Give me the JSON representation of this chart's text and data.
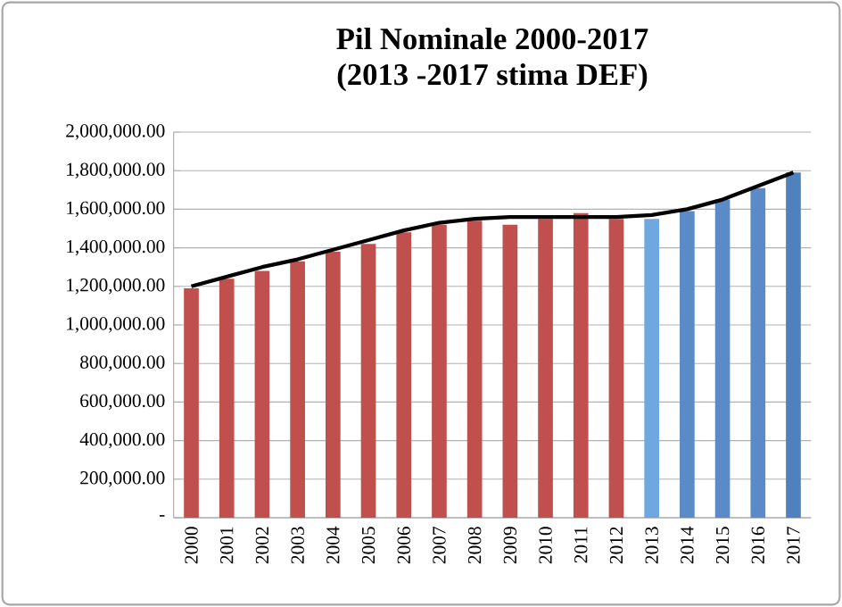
{
  "chart_data": {
    "type": "bar",
    "title": "Pil Nominale 2000-2017",
    "subtitle": "(2013 -2017 stima DEF)",
    "categories": [
      "2000",
      "2001",
      "2002",
      "2003",
      "2004",
      "2005",
      "2006",
      "2007",
      "2008",
      "2009",
      "2010",
      "2011",
      "2012",
      "2013",
      "2014",
      "2015",
      "2016",
      "2017"
    ],
    "series": [
      {
        "colors": [
          "#c0504d",
          "#c0504d",
          "#c0504d",
          "#c0504d",
          "#c0504d",
          "#c0504d",
          "#c0504d",
          "#c0504d",
          "#c0504d",
          "#c0504d",
          "#c0504d",
          "#c0504d",
          "#c0504d",
          "#6fa8e0",
          "#5b8bc6",
          "#5b8bc6",
          "#5b8bc6",
          "#4f81bd"
        ],
        "values": [
          1190000,
          1240000,
          1280000,
          1330000,
          1380000,
          1420000,
          1480000,
          1520000,
          1540000,
          1520000,
          1550000,
          1580000,
          1550000,
          1550000,
          1590000,
          1650000,
          1710000,
          1790000
        ]
      },
      {
        "type": "line",
        "color": "#000000",
        "values": [
          1200000,
          1250000,
          1300000,
          1340000,
          1390000,
          1440000,
          1490000,
          1530000,
          1550000,
          1560000,
          1560000,
          1560000,
          1560000,
          1570000,
          1600000,
          1650000,
          1720000,
          1790000
        ]
      }
    ],
    "ylim": [
      0,
      2000000
    ],
    "yticks": [
      {
        "value": 0,
        "label": "-"
      },
      {
        "value": 200000,
        "label": "200,000.00"
      },
      {
        "value": 400000,
        "label": "400,000.00"
      },
      {
        "value": 600000,
        "label": "600,000.00"
      },
      {
        "value": 800000,
        "label": "800,000.00"
      },
      {
        "value": 1000000,
        "label": "1,000,000.00"
      },
      {
        "value": 1200000,
        "label": "1,200,000.00"
      },
      {
        "value": 1400000,
        "label": "1,400,000.00"
      },
      {
        "value": 1600000,
        "label": "1,600,000.00"
      },
      {
        "value": 1800000,
        "label": "1,800,000.00"
      },
      {
        "value": 2000000,
        "label": "2,000,000.00"
      }
    ],
    "grid": "y"
  }
}
